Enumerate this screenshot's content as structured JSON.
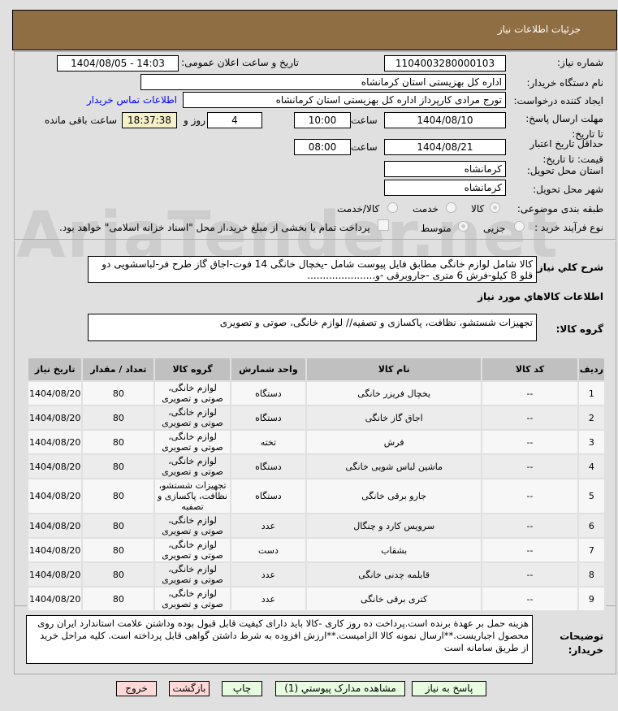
{
  "header": {
    "title": "جزئیات اطلاعات نیاز"
  },
  "form": {
    "need_number_label": "شماره نیاز:",
    "need_number": "1104003280000103",
    "announce_label": "تاریخ و ساعت اعلان عمومی:",
    "announce_value": "1404/08/05 - 14:03",
    "buyer_org_label": "نام دستگاه خریدار:",
    "buyer_org": "اداره کل بهزیستی استان کرمانشاه",
    "creator_label": "ایجاد کننده درخواست:",
    "creator": "تورج مرادی کارپرداز  اداره کل بهزیستی استان کرمانشاه",
    "contact_link": "اطلاعات تماس خریدار",
    "deadline_label": "مهلت ارسال پاسخ: تا تاریخ:",
    "deadline_date": "1404/08/10",
    "time_label": "ساعت",
    "deadline_time": "10:00",
    "days": "4",
    "days_label": "روز و",
    "remaining": "18:37:38",
    "remaining_label": "ساعت باقی مانده",
    "validity_label": "حداقل تاریخ اعتبار قیمت: تا تاریخ:",
    "validity_date": "1404/08/21",
    "validity_time": "08:00",
    "province_label": "استان محل تحویل:",
    "province": "کرمانشاه",
    "city_label": "شهر محل تحویل:",
    "city": "کرمانشاه",
    "category_label": "طبقه بندی موضوعی:",
    "category_options": [
      "کالا",
      "خدمت",
      "کالا/خدمت"
    ],
    "category_selected": "کالا",
    "process_label": "نوع فرآیند خرید :",
    "process_options": [
      "جزیی",
      "متوسط"
    ],
    "process_selected": "متوسط",
    "treasury_text": "پرداخت تمام یا بخشی از مبلغ خرید،از محل \"اسناد خزانه اسلامی\" خواهد بود."
  },
  "description": {
    "label": "شرح کلي نياز:",
    "text": "کالا شامل لوازم خانگی مطابق فایل پیوست شامل -یخچال خانگی 14 فوت-اجاق گاز طرح فر-لباسشویی دو قلو 8 کیلو-فرش 6 متری -جاروبرقی -و......................"
  },
  "goods_info_title": "اطلاعات کالاهاي مورد نياز",
  "goods_group": {
    "label": "گروه کالا:",
    "text": "تجهیزات شستشو، نظافت، پاکسازی و تصفیه// لوازم خانگی، صوتی و تصویری"
  },
  "table": {
    "headers": [
      "ردیف",
      "کد کالا",
      "نام کالا",
      "واحد شمارش",
      "گروه کالا",
      "تعداد / مقدار",
      "تاریخ نیاز"
    ],
    "rows": [
      [
        "1",
        "--",
        "یخچال فریزر خانگی",
        "دستگاه",
        "لوازم خانگی، صوتی و تصویری",
        "80",
        "1404/08/20"
      ],
      [
        "2",
        "--",
        "اجاق گاز خانگی",
        "دستگاه",
        "لوازم خانگی، صوتی و تصویری",
        "80",
        "1404/08/20"
      ],
      [
        "3",
        "--",
        "فرش",
        "تخته",
        "لوازم خانگی، صوتی و تصویری",
        "80",
        "1404/08/20"
      ],
      [
        "4",
        "--",
        "ماشین لباس شویی خانگی",
        "دستگاه",
        "لوازم خانگی، صوتی و تصویری",
        "80",
        "1404/08/20"
      ],
      [
        "5",
        "--",
        "جارو برقی خانگی",
        "دستگاه",
        "تجهیزات شستشو، نظافت، پاکسازی و تصفیه",
        "80",
        "1404/08/20"
      ],
      [
        "6",
        "--",
        "سرویس کارد و چنگال",
        "عدد",
        "لوازم خانگی، صوتی و تصویری",
        "80",
        "1404/08/20"
      ],
      [
        "7",
        "--",
        "بشقاب",
        "دست",
        "لوازم خانگی، صوتی و تصویری",
        "80",
        "1404/08/20"
      ],
      [
        "8",
        "--",
        "قابلمه چدنی خانگی",
        "عدد",
        "لوازم خانگی، صوتی و تصویری",
        "80",
        "1404/08/20"
      ],
      [
        "9",
        "--",
        "کتری برقی خانگی",
        "عدد",
        "لوازم خانگی، صوتی و تصویری",
        "80",
        "1404/08/20"
      ]
    ]
  },
  "notes": {
    "label": "توضیحات خریدار:",
    "text": "هزینه حمل بر عهدة برنده است.پرداخت ده روز کاری -کالا باید دارای کیفیت قابل قبول بوده وداشتن علامت استاندارد ایران روی محصول اجباریست.**ارسال نمونه کالا  الزامیست.**ارزش افزوده به شرط داشتن گواهی قابل پرداخته است. کلیه مراحل خرید از طریق سامانه است"
  },
  "buttons": {
    "reply": "پاسخ به نیاز",
    "attachments": "مشاهده مدارک پیوستي (1)",
    "print": "چاپ",
    "back": "بازگشت",
    "exit": "خروج"
  },
  "watermark": "AriaTender.net",
  "colors": {
    "header": "#8e6e42",
    "link": "#0000ff",
    "remaining_bg": "#f5f0c8",
    "green_btn": "#e6fbe0",
    "red_btn": "#ffd8d8"
  }
}
